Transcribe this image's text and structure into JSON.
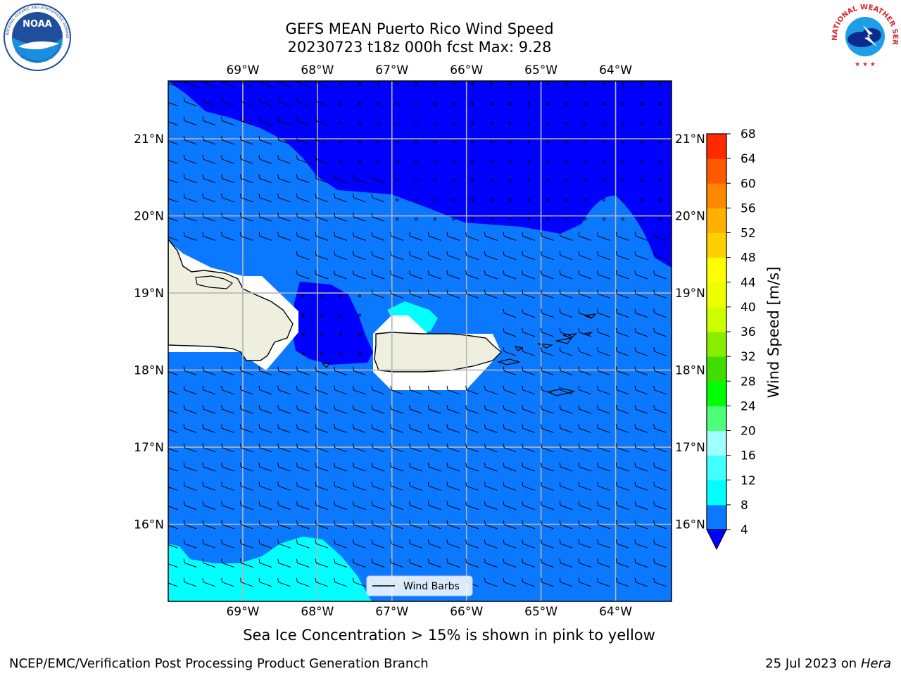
{
  "header": {
    "title_line1": "GEFS MEAN Puerto Rico Wind Speed",
    "title_line2": "20230723 t18z 000h fcst   Max: 9.28"
  },
  "logos": {
    "left": {
      "text": "NOAA",
      "ring_text": "NATIONAL OCEANIC AND ATMOSPHERIC ADMINISTRATION · U.S. DEPARTMENT OF COMMERCE",
      "color": "#1f4e9c"
    },
    "right": {
      "text": "NATIONAL WEATHER SERVICE",
      "color": "#d8262c"
    }
  },
  "map": {
    "lon_labels": [
      "69°W",
      "68°W",
      "67°W",
      "66°W",
      "65°W",
      "64°W"
    ],
    "lat_labels": [
      "21°N",
      "20°N",
      "19°N",
      "18°N",
      "17°N",
      "16°N"
    ],
    "lon_values": [
      -69,
      -68,
      -67,
      -66,
      -65,
      -64
    ],
    "lat_values": [
      21,
      20,
      19,
      18,
      17,
      16
    ],
    "extent": {
      "lon_min": -70,
      "lon_max": -63.25,
      "lat_min": 15.0,
      "lat_max": 21.75
    },
    "legend_label": "Wind Barbs",
    "land_color": "#efefdf",
    "fill_colors": {
      "lt4": "#0000ff",
      "4to8": "#0a78ff",
      "8to12": "#00ffff",
      "12to16": "#44ffff"
    },
    "wind_direction": "easterly"
  },
  "colorbar": {
    "label": "Wind Speed [m/s]",
    "tick_labels": [
      "4",
      "8",
      "12",
      "16",
      "20",
      "24",
      "28",
      "32",
      "36",
      "40",
      "44",
      "48",
      "52",
      "56",
      "60",
      "64",
      "68"
    ],
    "levels": [
      4,
      8,
      12,
      16,
      20,
      24,
      28,
      32,
      36,
      40,
      44,
      48,
      52,
      56,
      60,
      64,
      68
    ],
    "colors": [
      "#0a78ff",
      "#00ffff",
      "#44ffff",
      "#a0ffff",
      "#50ff78",
      "#00ff00",
      "#40dd00",
      "#88ee00",
      "#ccff00",
      "#eeff00",
      "#ffff00",
      "#ffd000",
      "#ffb000",
      "#ff8800",
      "#ff5a00",
      "#ff2a00"
    ],
    "under_color": "#0000ff"
  },
  "footer": {
    "caption": "Sea Ice Concentration > 15% is shown in pink to yellow",
    "credit": "NCEP/EMC/Verification Post Processing Product Generation Branch",
    "date": "25 Jul 2023 on ",
    "machine": "Hera"
  }
}
